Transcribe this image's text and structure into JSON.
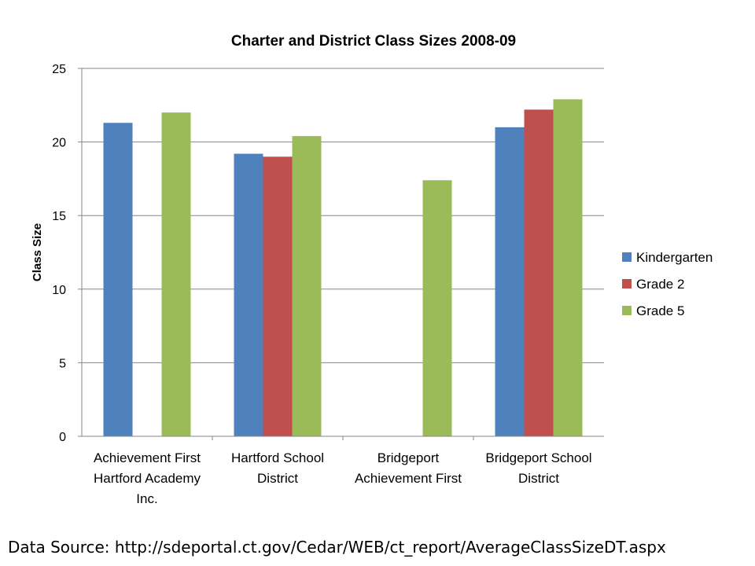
{
  "chart_data": {
    "type": "bar",
    "title": "Charter and District Class Sizes 2008-09",
    "xlabel": "",
    "ylabel": "Class Size",
    "ylim": [
      0,
      25
    ],
    "yticks": [
      "0",
      "5",
      "10",
      "15",
      "20",
      "25"
    ],
    "grid": true,
    "legend_position": "right",
    "categories": [
      [
        "Achievement First",
        "Hartford Academy",
        "Inc."
      ],
      [
        "Hartford School",
        "District"
      ],
      [
        "Bridgeport",
        "Achievement First"
      ],
      [
        "Bridgeport School",
        "District"
      ]
    ],
    "series": [
      {
        "name": "Kindergarten",
        "color": "#4F81BD",
        "values": [
          21.3,
          19.2,
          null,
          21.0
        ]
      },
      {
        "name": "Grade  2",
        "color": "#C0504D",
        "values": [
          null,
          19.0,
          null,
          22.2
        ]
      },
      {
        "name": "Grade  5",
        "color": "#9BBB59",
        "values": [
          22.0,
          20.4,
          17.4,
          22.9
        ]
      }
    ]
  },
  "footer": {
    "source": "Data Source: http://sdeportal.ct.gov/Cedar/WEB/ct_report/AverageClassSizeDT.aspx"
  }
}
